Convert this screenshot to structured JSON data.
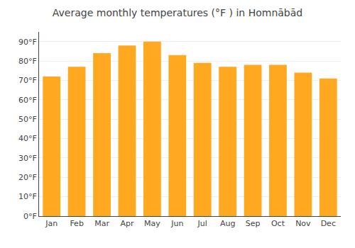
{
  "chart_data": {
    "type": "bar",
    "title": "Average monthly temperatures (°F ) in Homnābād",
    "categories": [
      "Jan",
      "Feb",
      "Mar",
      "Apr",
      "May",
      "Jun",
      "Jul",
      "Aug",
      "Sep",
      "Oct",
      "Nov",
      "Dec"
    ],
    "values": [
      72,
      77,
      84,
      88,
      90,
      83,
      79,
      77,
      78,
      78,
      74,
      71
    ],
    "color": "#FFA820",
    "ylim": [
      0,
      95
    ],
    "yticks": [
      {
        "value": 0,
        "label": "0°F"
      },
      {
        "value": 10,
        "label": "10°F"
      },
      {
        "value": 20,
        "label": "20°F"
      },
      {
        "value": 30,
        "label": "30°F"
      },
      {
        "value": 40,
        "label": "40°F"
      },
      {
        "value": 50,
        "label": "50°F"
      },
      {
        "value": 60,
        "label": "60°F"
      },
      {
        "value": 70,
        "label": "70°F"
      },
      {
        "value": 80,
        "label": "80°F"
      },
      {
        "value": 90,
        "label": "90°F"
      }
    ],
    "grid": true
  }
}
